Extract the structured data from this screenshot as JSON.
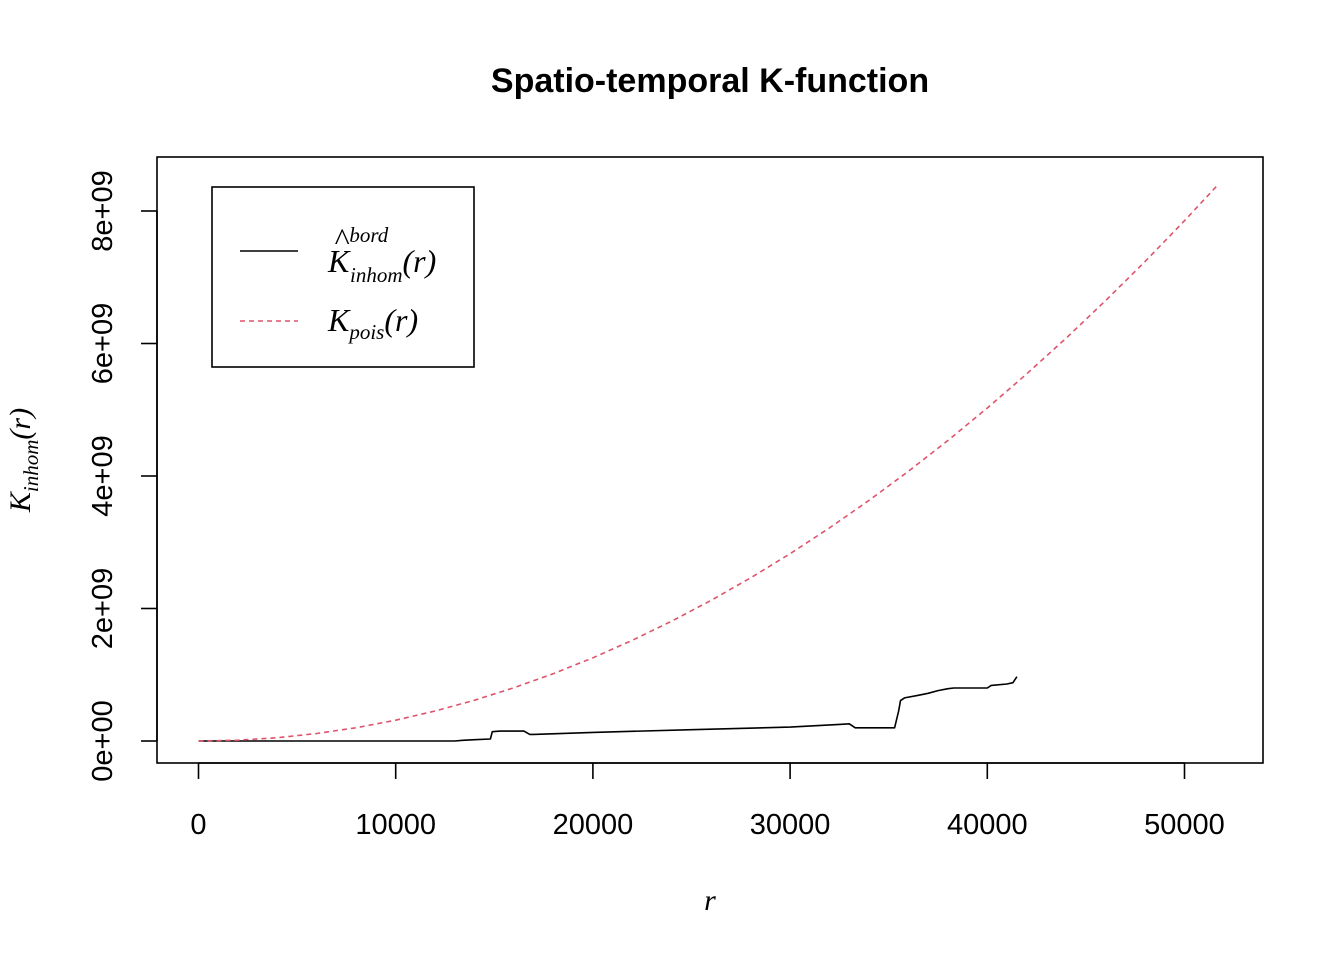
{
  "chart_data": {
    "type": "line",
    "title": "Spatio-temporal K-function",
    "xlabel": "r",
    "ylabel": {
      "main": "K",
      "sub": "inhom",
      "arg": "(r)"
    },
    "xlim": [
      0,
      52000
    ],
    "ylim": [
      0,
      8400000000
    ],
    "x_ticks": [
      0,
      10000,
      20000,
      30000,
      40000,
      50000
    ],
    "x_tick_labels": [
      "0",
      "10000",
      "20000",
      "30000",
      "40000",
      "50000"
    ],
    "y_ticks": [
      0,
      2000000000,
      4000000000,
      6000000000,
      8000000000
    ],
    "y_tick_labels": [
      "0e+00",
      "2e+09",
      "4e+09",
      "6e+09",
      "8e+09"
    ],
    "grid": false,
    "legend_position": "top-left",
    "series": [
      {
        "key": "bord",
        "legend": {
          "main": "K",
          "hat": "^",
          "sup": "bord",
          "sub": "inhom",
          "arg": "(r)"
        },
        "color": "#000000",
        "dash": "solid",
        "x": [
          0,
          5000,
          10000,
          13000,
          13400,
          14000,
          14800,
          14900,
          15300,
          16500,
          16800,
          17000,
          20000,
          25000,
          30000,
          32500,
          33000,
          33300,
          35300,
          35500,
          35600,
          35800,
          36500,
          37000,
          37500,
          38000,
          38300,
          39000,
          39500,
          40000,
          40200,
          41000,
          41300,
          41500
        ],
        "y": [
          0,
          0,
          0,
          0,
          10000000,
          20000000,
          30000000,
          140000000,
          150000000,
          150000000,
          100000000,
          100000000,
          130000000,
          170000000,
          210000000,
          250000000,
          260000000,
          200000000,
          200000000,
          450000000,
          610000000,
          650000000,
          690000000,
          720000000,
          760000000,
          790000000,
          800000000,
          800000000,
          800000000,
          800000000,
          840000000,
          860000000,
          880000000,
          970000000
        ]
      },
      {
        "key": "pois",
        "legend": {
          "main": "K",
          "sub": "pois",
          "arg": "(r)"
        },
        "color": "#DF536B",
        "dash": "dashed",
        "x": [
          0,
          2000,
          4000,
          6000,
          8000,
          10000,
          12000,
          14000,
          16000,
          18000,
          20000,
          22000,
          24000,
          26000,
          28000,
          30000,
          32000,
          34000,
          36000,
          38000,
          40000,
          42000,
          44000,
          46000,
          48000,
          50000,
          51700
        ],
        "y": [
          0,
          12600000,
          50300000,
          113100000,
          201100000,
          314200000,
          452400000,
          615800000,
          804200000,
          1017900000,
          1256600000,
          1520500000,
          1809600000,
          2123700000,
          2463000000,
          2827400000,
          3217000000,
          3631700000,
          4071500000,
          4536500000,
          5026500000,
          5541800000,
          6082100000,
          6647600000,
          7238200000,
          7854000000,
          8397000000
        ]
      }
    ]
  }
}
